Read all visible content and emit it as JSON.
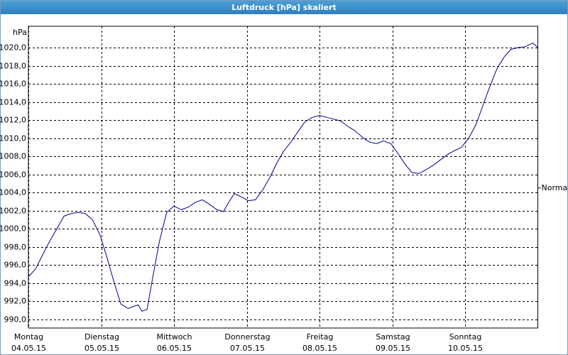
{
  "chart_data": {
    "type": "line",
    "title": "Luftdruck [hPa] skaliert",
    "y_unit": "hPa",
    "xlim": [
      0,
      7
    ],
    "xticks": [
      {
        "value": 0,
        "label": "Montag"
      },
      {
        "value": 1,
        "label": "Dienstag"
      },
      {
        "value": 2,
        "label": "Mittwoch"
      },
      {
        "value": 3,
        "label": "Donnerstag"
      },
      {
        "value": 4,
        "label": "Freitag"
      },
      {
        "value": 5,
        "label": "Samstag"
      },
      {
        "value": 6,
        "label": "Sonntag"
      }
    ],
    "xtick_dates": [
      "04.05.15",
      "05.05.15",
      "06.05.15",
      "07.05.15",
      "08.05.15",
      "09.05.15",
      "10.05.15"
    ],
    "ylim": [
      989.05,
      1022.35
    ],
    "yticks": [
      {
        "value": 990,
        "label": "990,0"
      },
      {
        "value": 992,
        "label": "992,0"
      },
      {
        "value": 994,
        "label": "994,0"
      },
      {
        "value": 996,
        "label": "996,0"
      },
      {
        "value": 998,
        "label": "998,0"
      },
      {
        "value": 1000,
        "label": "1000,0"
      },
      {
        "value": 1002,
        "label": "1002,0"
      },
      {
        "value": 1004,
        "label": "1004,0"
      },
      {
        "value": 1006,
        "label": "1006,0"
      },
      {
        "value": 1008,
        "label": "1008,0"
      },
      {
        "value": 1010,
        "label": "1010,0"
      },
      {
        "value": 1012,
        "label": "1012,0"
      },
      {
        "value": 1014,
        "label": "1014,0"
      },
      {
        "value": 1016,
        "label": "1016,0"
      },
      {
        "value": 1018,
        "label": "1018,0"
      },
      {
        "value": 1020,
        "label": "1020,0"
      }
    ],
    "grid": true,
    "reference": {
      "label": "Normal",
      "value": 1004.5
    },
    "x": [
      0,
      0.1,
      0.2,
      0.29,
      0.39,
      0.49,
      0.59,
      0.68,
      0.78,
      0.88,
      0.98,
      1.07,
      1.17,
      1.27,
      1.37,
      1.43,
      1.51,
      1.56,
      1.63,
      1.71,
      1.8,
      1.9,
      2.0,
      2.1,
      2.2,
      2.29,
      2.39,
      2.49,
      2.59,
      2.68,
      2.75,
      2.83,
      2.93,
      3.02,
      3.12,
      3.22,
      3.32,
      3.41,
      3.51,
      3.61,
      3.71,
      3.8,
      3.9,
      4.0,
      4.1,
      4.2,
      4.29,
      4.39,
      4.49,
      4.59,
      4.68,
      4.78,
      4.88,
      4.98,
      5.07,
      5.17,
      5.27,
      5.37,
      5.46,
      5.56,
      5.66,
      5.76,
      5.85,
      5.95,
      6.05,
      6.15,
      6.24,
      6.34,
      6.44,
      6.54,
      6.63,
      6.73,
      6.83,
      6.93,
      7.0
    ],
    "series": [
      {
        "color": "#00008b",
        "values": [
          994.7,
          995.6,
          997.2,
          998.6,
          1000.0,
          1001.4,
          1001.7,
          1001.8,
          1001.7,
          1001.0,
          999.4,
          997.1,
          994.3,
          991.7,
          991.2,
          991.4,
          991.6,
          990.9,
          991.1,
          994.7,
          998.6,
          1001.8,
          1002.5,
          1002.1,
          1002.4,
          1002.9,
          1003.2,
          1002.7,
          1002.1,
          1001.9,
          1002.9,
          1003.9,
          1003.5,
          1003.1,
          1003.2,
          1004.3,
          1005.7,
          1007.2,
          1008.6,
          1009.6,
          1010.8,
          1011.8,
          1012.3,
          1012.5,
          1012.3,
          1012.1,
          1011.9,
          1011.3,
          1010.8,
          1010.1,
          1009.6,
          1009.4,
          1009.7,
          1009.4,
          1008.4,
          1007.2,
          1006.2,
          1006.1,
          1006.5,
          1007.0,
          1007.6,
          1008.2,
          1008.6,
          1009.0,
          1010.0,
          1011.5,
          1013.5,
          1015.7,
          1017.7,
          1019.0,
          1019.8,
          1020.0,
          1020.1,
          1020.5,
          1020.0
        ]
      }
    ]
  }
}
